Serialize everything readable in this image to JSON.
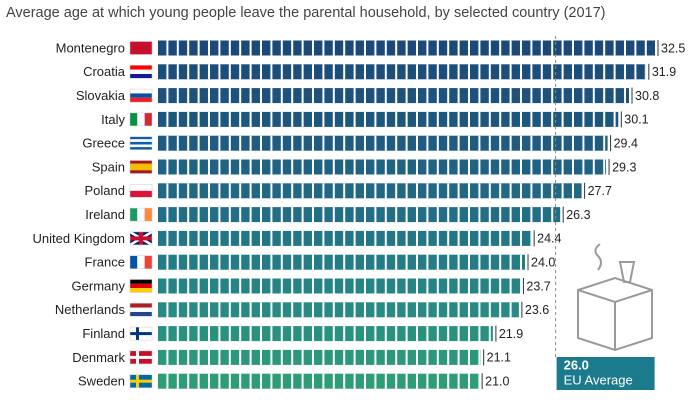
{
  "chart_data": {
    "type": "bar",
    "orientation": "horizontal",
    "title": "Average age at which young people leave the parental household, by selected country (2017)",
    "categories": [
      "Montenegro",
      "Croatia",
      "Slovakia",
      "Italy",
      "Greece",
      "Spain",
      "Poland",
      "Ireland",
      "United Kingdom",
      "France",
      "Germany",
      "Netherlands",
      "Finland",
      "Denmark",
      "Sweden"
    ],
    "values": [
      32.5,
      31.9,
      30.8,
      30.1,
      29.4,
      29.3,
      27.7,
      26.3,
      24.4,
      24.0,
      23.7,
      23.6,
      21.9,
      21.1,
      21.0
    ],
    "value_labels": [
      "32.5",
      "31.9",
      "30.8",
      "30.1",
      "29.4",
      "29.3",
      "27.7",
      "26.3",
      "24.4",
      "24.0",
      "23.7",
      "23.6",
      "21.9",
      "21.1",
      "21.0"
    ],
    "colors": [
      "#1c4a78",
      "#1c4e7a",
      "#1d527c",
      "#1e577e",
      "#1f5c80",
      "#206282",
      "#216884",
      "#226f85",
      "#237686",
      "#247d86",
      "#268485",
      "#288a83",
      "#2a9180",
      "#2c977c",
      "#2e9c78"
    ],
    "reference_line": {
      "value": 26.0,
      "value_label": "26.0",
      "label": "EU Average",
      "color": "#1b7a8c"
    }
  }
}
